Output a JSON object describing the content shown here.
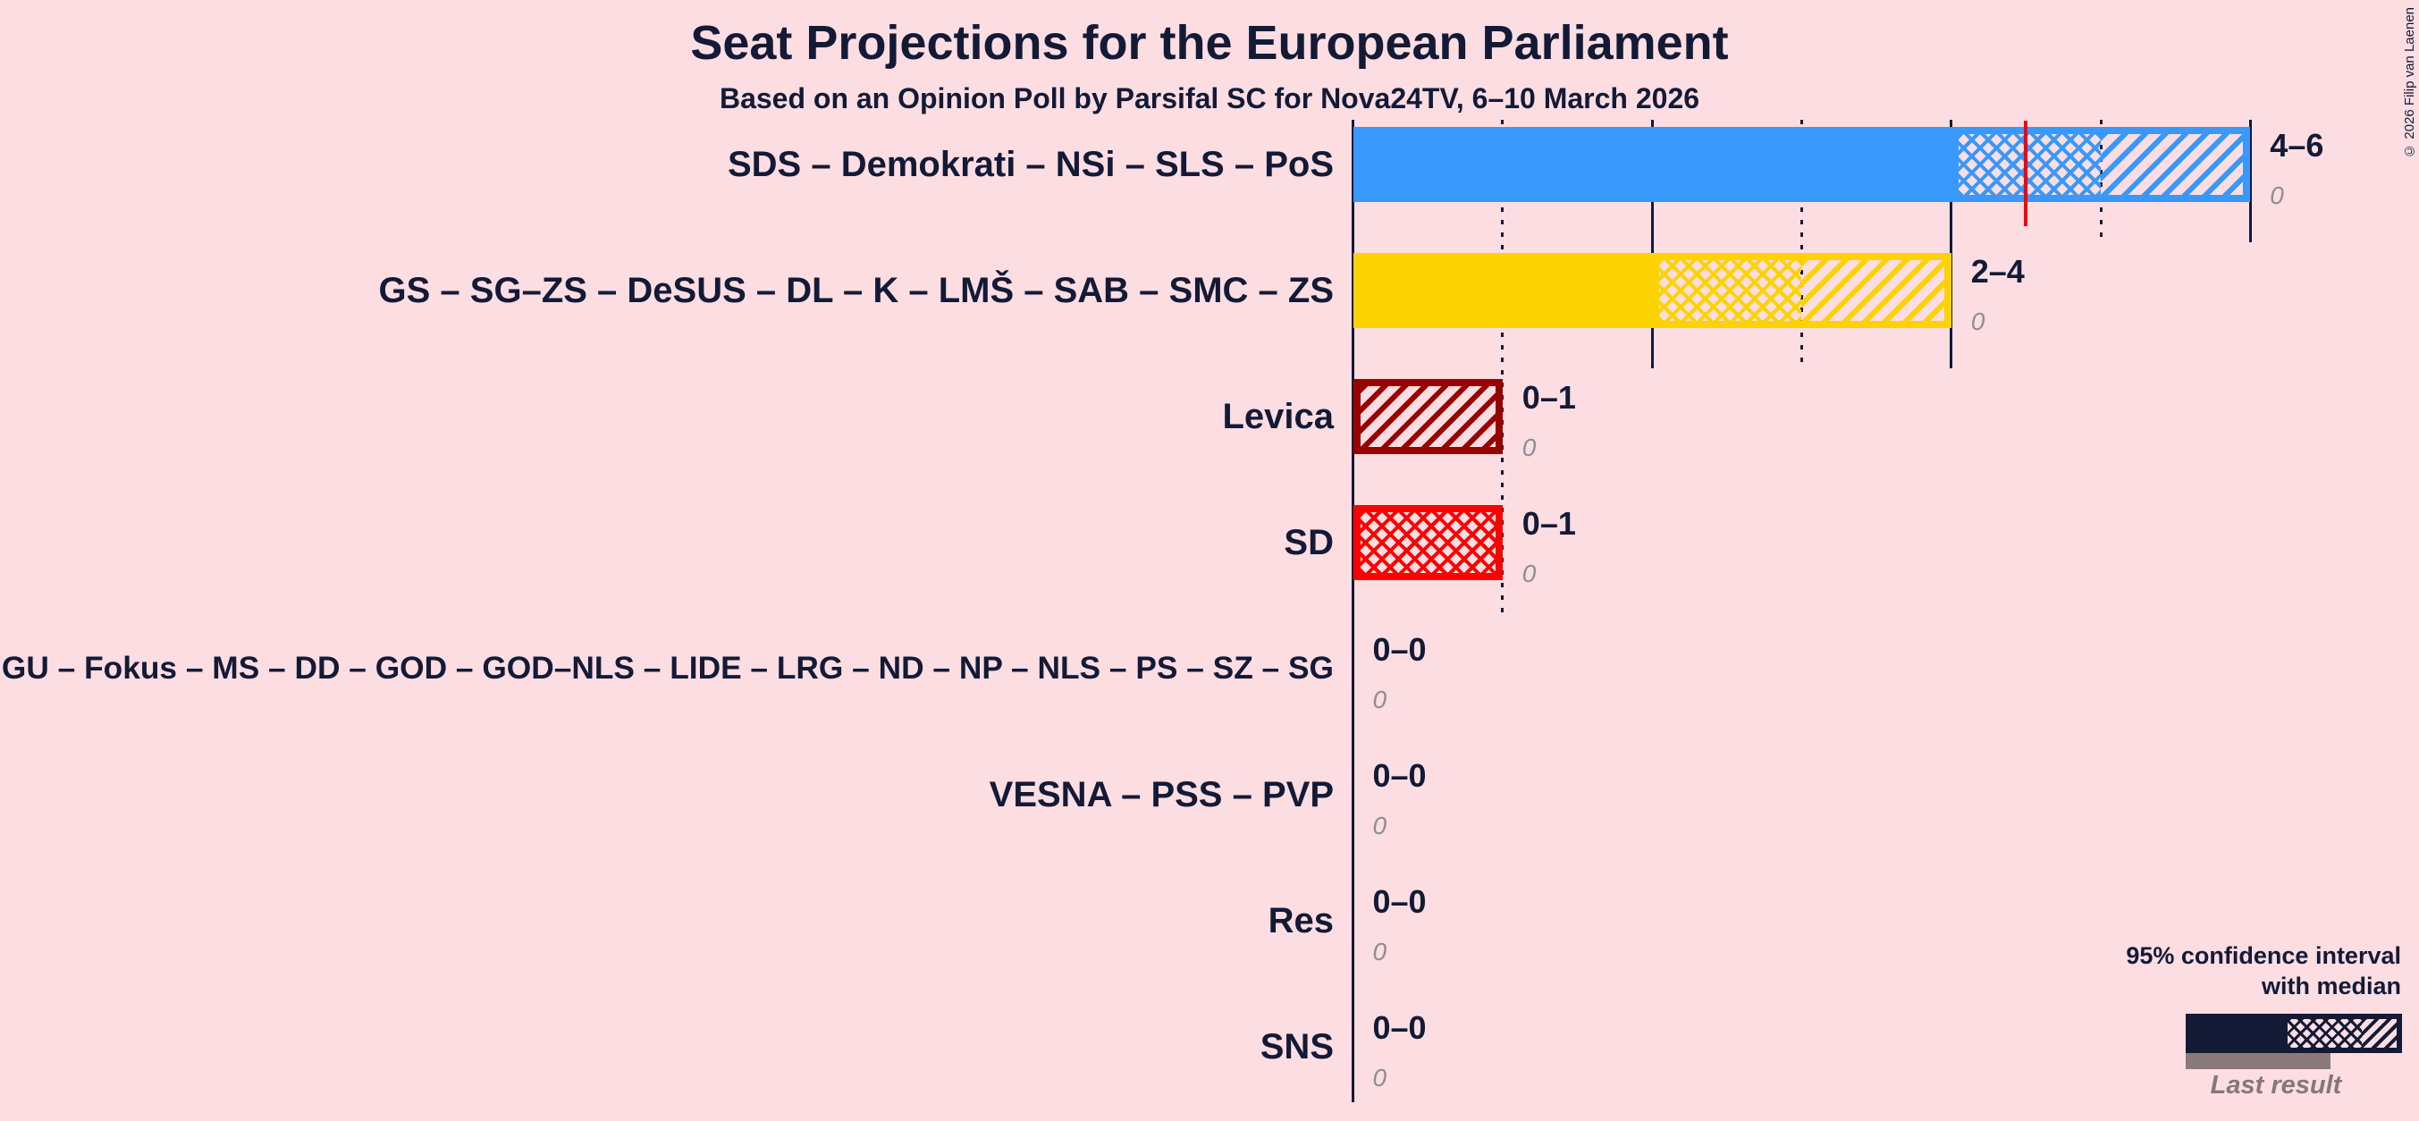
{
  "header": {
    "title": "Seat Projections for the European Parliament",
    "subtitle": "Based on an Opinion Poll by Parsifal SC for Nova24TV, 6–10 March 2026"
  },
  "copyright": "© 2026 Filip van Laenen",
  "legend": {
    "ci_title_line1": "95% confidence interval",
    "ci_title_line2": "with median",
    "last_result_label": "Last result"
  },
  "colors": {
    "background": "#FCDDE2",
    "text": "#131A36",
    "grid": "#131A36",
    "muted_gray": "#8D8D95",
    "last_result_gray": "#8A7A7D",
    "majority_line_red": "#F2000C",
    "sds_blue": "#3998FB",
    "gs_yellow": "#FCD300",
    "levica_dark_red": "#990000",
    "sd_red": "#FB0000"
  },
  "chart_data": {
    "type": "bar",
    "orientation": "horizontal",
    "title": "Seat Projections for the European Parliament",
    "x_axis": {
      "min": 0,
      "max": 6,
      "solid_gridlines": [
        0,
        2,
        4,
        6
      ],
      "dotted_gridlines": [
        1,
        3,
        5
      ]
    },
    "majority_line_x": 4.5,
    "rows": [
      {
        "label": "SDS – Demokrati – NSi – SLS – PoS",
        "lower": 4,
        "median": 5,
        "upper": 6,
        "value_label": "4–6",
        "last_result": 0,
        "last_result_label": "0",
        "color": "#3998FB"
      },
      {
        "label": "GS – SG–ZS – DeSUS – DL – K – LMŠ – SAB – SMC – ZS",
        "lower": 2,
        "median": 3,
        "upper": 4,
        "value_label": "2–4",
        "last_result": 0,
        "last_result_label": "0",
        "color": "#FCD300"
      },
      {
        "label": "Levica",
        "lower": 0,
        "median": 0,
        "upper": 1,
        "value_label": "0–1",
        "last_result": 0,
        "last_result_label": "0",
        "color": "#990000"
      },
      {
        "label": "SD",
        "lower": 0,
        "median": 1,
        "upper": 1,
        "value_label": "0–1",
        "last_result": 0,
        "last_result_label": "0",
        "color": "#FB0000"
      },
      {
        "label": "GU – Fokus – MS – DD – GOD – GOD–NLS – LIDE – LRG – ND – NP – NLS – PS – SZ – SG",
        "lower": 0,
        "median": 0,
        "upper": 0,
        "value_label": "0–0",
        "last_result": 0,
        "last_result_label": "0",
        "color": "#131A36"
      },
      {
        "label": "VESNA – PSS – PVP",
        "lower": 0,
        "median": 0,
        "upper": 0,
        "value_label": "0–0",
        "last_result": 0,
        "last_result_label": "0",
        "color": "#131A36"
      },
      {
        "label": "Res",
        "lower": 0,
        "median": 0,
        "upper": 0,
        "value_label": "0–0",
        "last_result": 0,
        "last_result_label": "0",
        "color": "#131A36"
      },
      {
        "label": "SNS",
        "lower": 0,
        "median": 0,
        "upper": 0,
        "value_label": "0–0",
        "last_result": 0,
        "last_result_label": "0",
        "color": "#131A36"
      }
    ]
  }
}
